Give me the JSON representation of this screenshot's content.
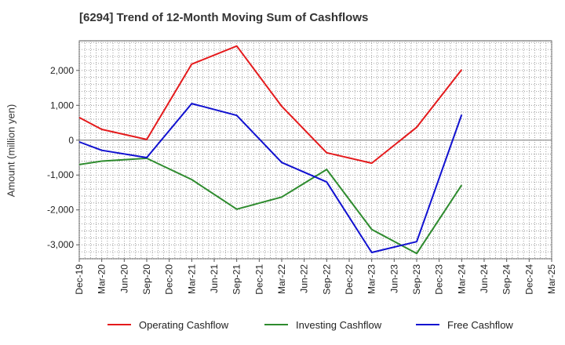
{
  "chart_data": {
    "type": "line",
    "title": "[6294]  Trend of 12-Month Moving Sum of Cashflows",
    "xlabel": "",
    "ylabel": "Amount (million yen)",
    "categories": [
      "Dec-19",
      "Mar-20",
      "Jun-20",
      "Sep-20",
      "Dec-20",
      "Mar-21",
      "Jun-21",
      "Sep-21",
      "Dec-21",
      "Mar-22",
      "Jun-22",
      "Sep-22",
      "Dec-22",
      "Mar-23",
      "Jun-23",
      "Sep-23",
      "Dec-23",
      "Mar-24",
      "Jun-24",
      "Sep-24",
      "Dec-24",
      "Mar-25"
    ],
    "y_ticks": [
      2000,
      1000,
      0,
      -1000,
      -2000,
      -3000
    ],
    "y_tick_labels": [
      "2,000",
      "1,000",
      "0",
      "-1,000",
      "-2,000",
      "-3,000"
    ],
    "ylim": [
      -3400,
      2850
    ],
    "grid": true,
    "legend_position": "bottom",
    "series": [
      {
        "name": "Operating Cashflow",
        "color": "#e41a1c",
        "values": [
          650,
          310,
          null,
          20,
          null,
          2180,
          null,
          2700,
          null,
          970,
          null,
          -360,
          null,
          -660,
          null,
          370,
          null,
          2020,
          null,
          null,
          null,
          null
        ]
      },
      {
        "name": "Investing Cashflow",
        "color": "#2e8b2e",
        "values": [
          -700,
          -600,
          null,
          -520,
          null,
          -1130,
          null,
          -1980,
          null,
          -1630,
          null,
          -840,
          null,
          -2560,
          null,
          -3250,
          null,
          -1290,
          null,
          null,
          null,
          null
        ]
      },
      {
        "name": "Free Cashflow",
        "color": "#1010d0",
        "values": [
          -50,
          -290,
          null,
          -500,
          null,
          1050,
          null,
          710,
          null,
          -640,
          null,
          -1200,
          null,
          -3220,
          null,
          -2910,
          null,
          730,
          null,
          null,
          null,
          null
        ]
      }
    ]
  }
}
